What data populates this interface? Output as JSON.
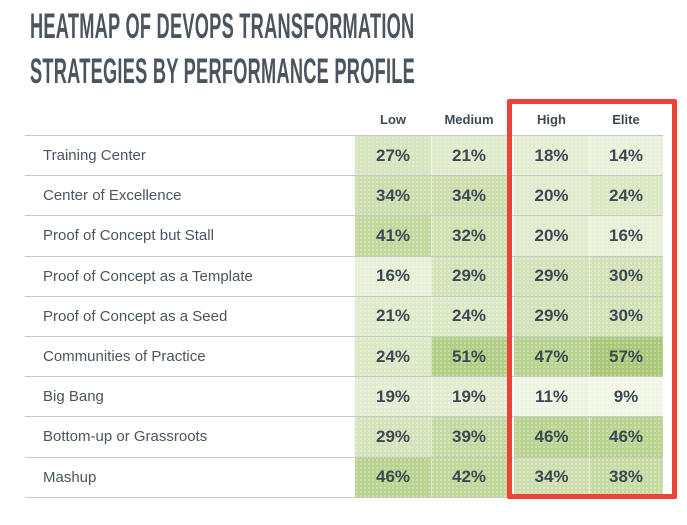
{
  "title": {
    "line1": "HEATMAP OF DEVOPS TRANSFORMATION",
    "line2": "STRATEGIES BY PERFORMANCE PROFILE",
    "color": "#4b555f"
  },
  "chart_data": {
    "type": "heatmap",
    "title": "Heatmap of DevOps Transformation Strategies by Performance Profile",
    "unit": "%",
    "columns": [
      "Low",
      "Medium",
      "High",
      "Elite"
    ],
    "rows": [
      "Training Center",
      "Center of Excellence",
      "Proof of Concept but Stall",
      "Proof of Concept as a Template",
      "Proof of Concept as a Seed",
      "Communities of Practice",
      "Big Bang",
      "Bottom-up or Grassroots",
      "Mashup"
    ],
    "values": [
      [
        27,
        21,
        18,
        14
      ],
      [
        34,
        34,
        20,
        24
      ],
      [
        41,
        32,
        20,
        16
      ],
      [
        16,
        29,
        29,
        30
      ],
      [
        21,
        24,
        29,
        30
      ],
      [
        24,
        51,
        47,
        57
      ],
      [
        19,
        19,
        11,
        9
      ],
      [
        29,
        39,
        46,
        46
      ],
      [
        46,
        42,
        34,
        38
      ]
    ],
    "color_scale": {
      "min_value": 9,
      "max_value": 57,
      "min_color": "#f1f6e7",
      "max_color": "#a9c878"
    },
    "highlight": {
      "columns": [
        "High",
        "Elite"
      ],
      "border_color": "#ee4137"
    },
    "grid_line_color": "#c9c9c9",
    "header_text_color": "#3d4954",
    "value_text_color": "#3d4954",
    "row_label_color": "#4a5560",
    "legend_position": "none"
  }
}
